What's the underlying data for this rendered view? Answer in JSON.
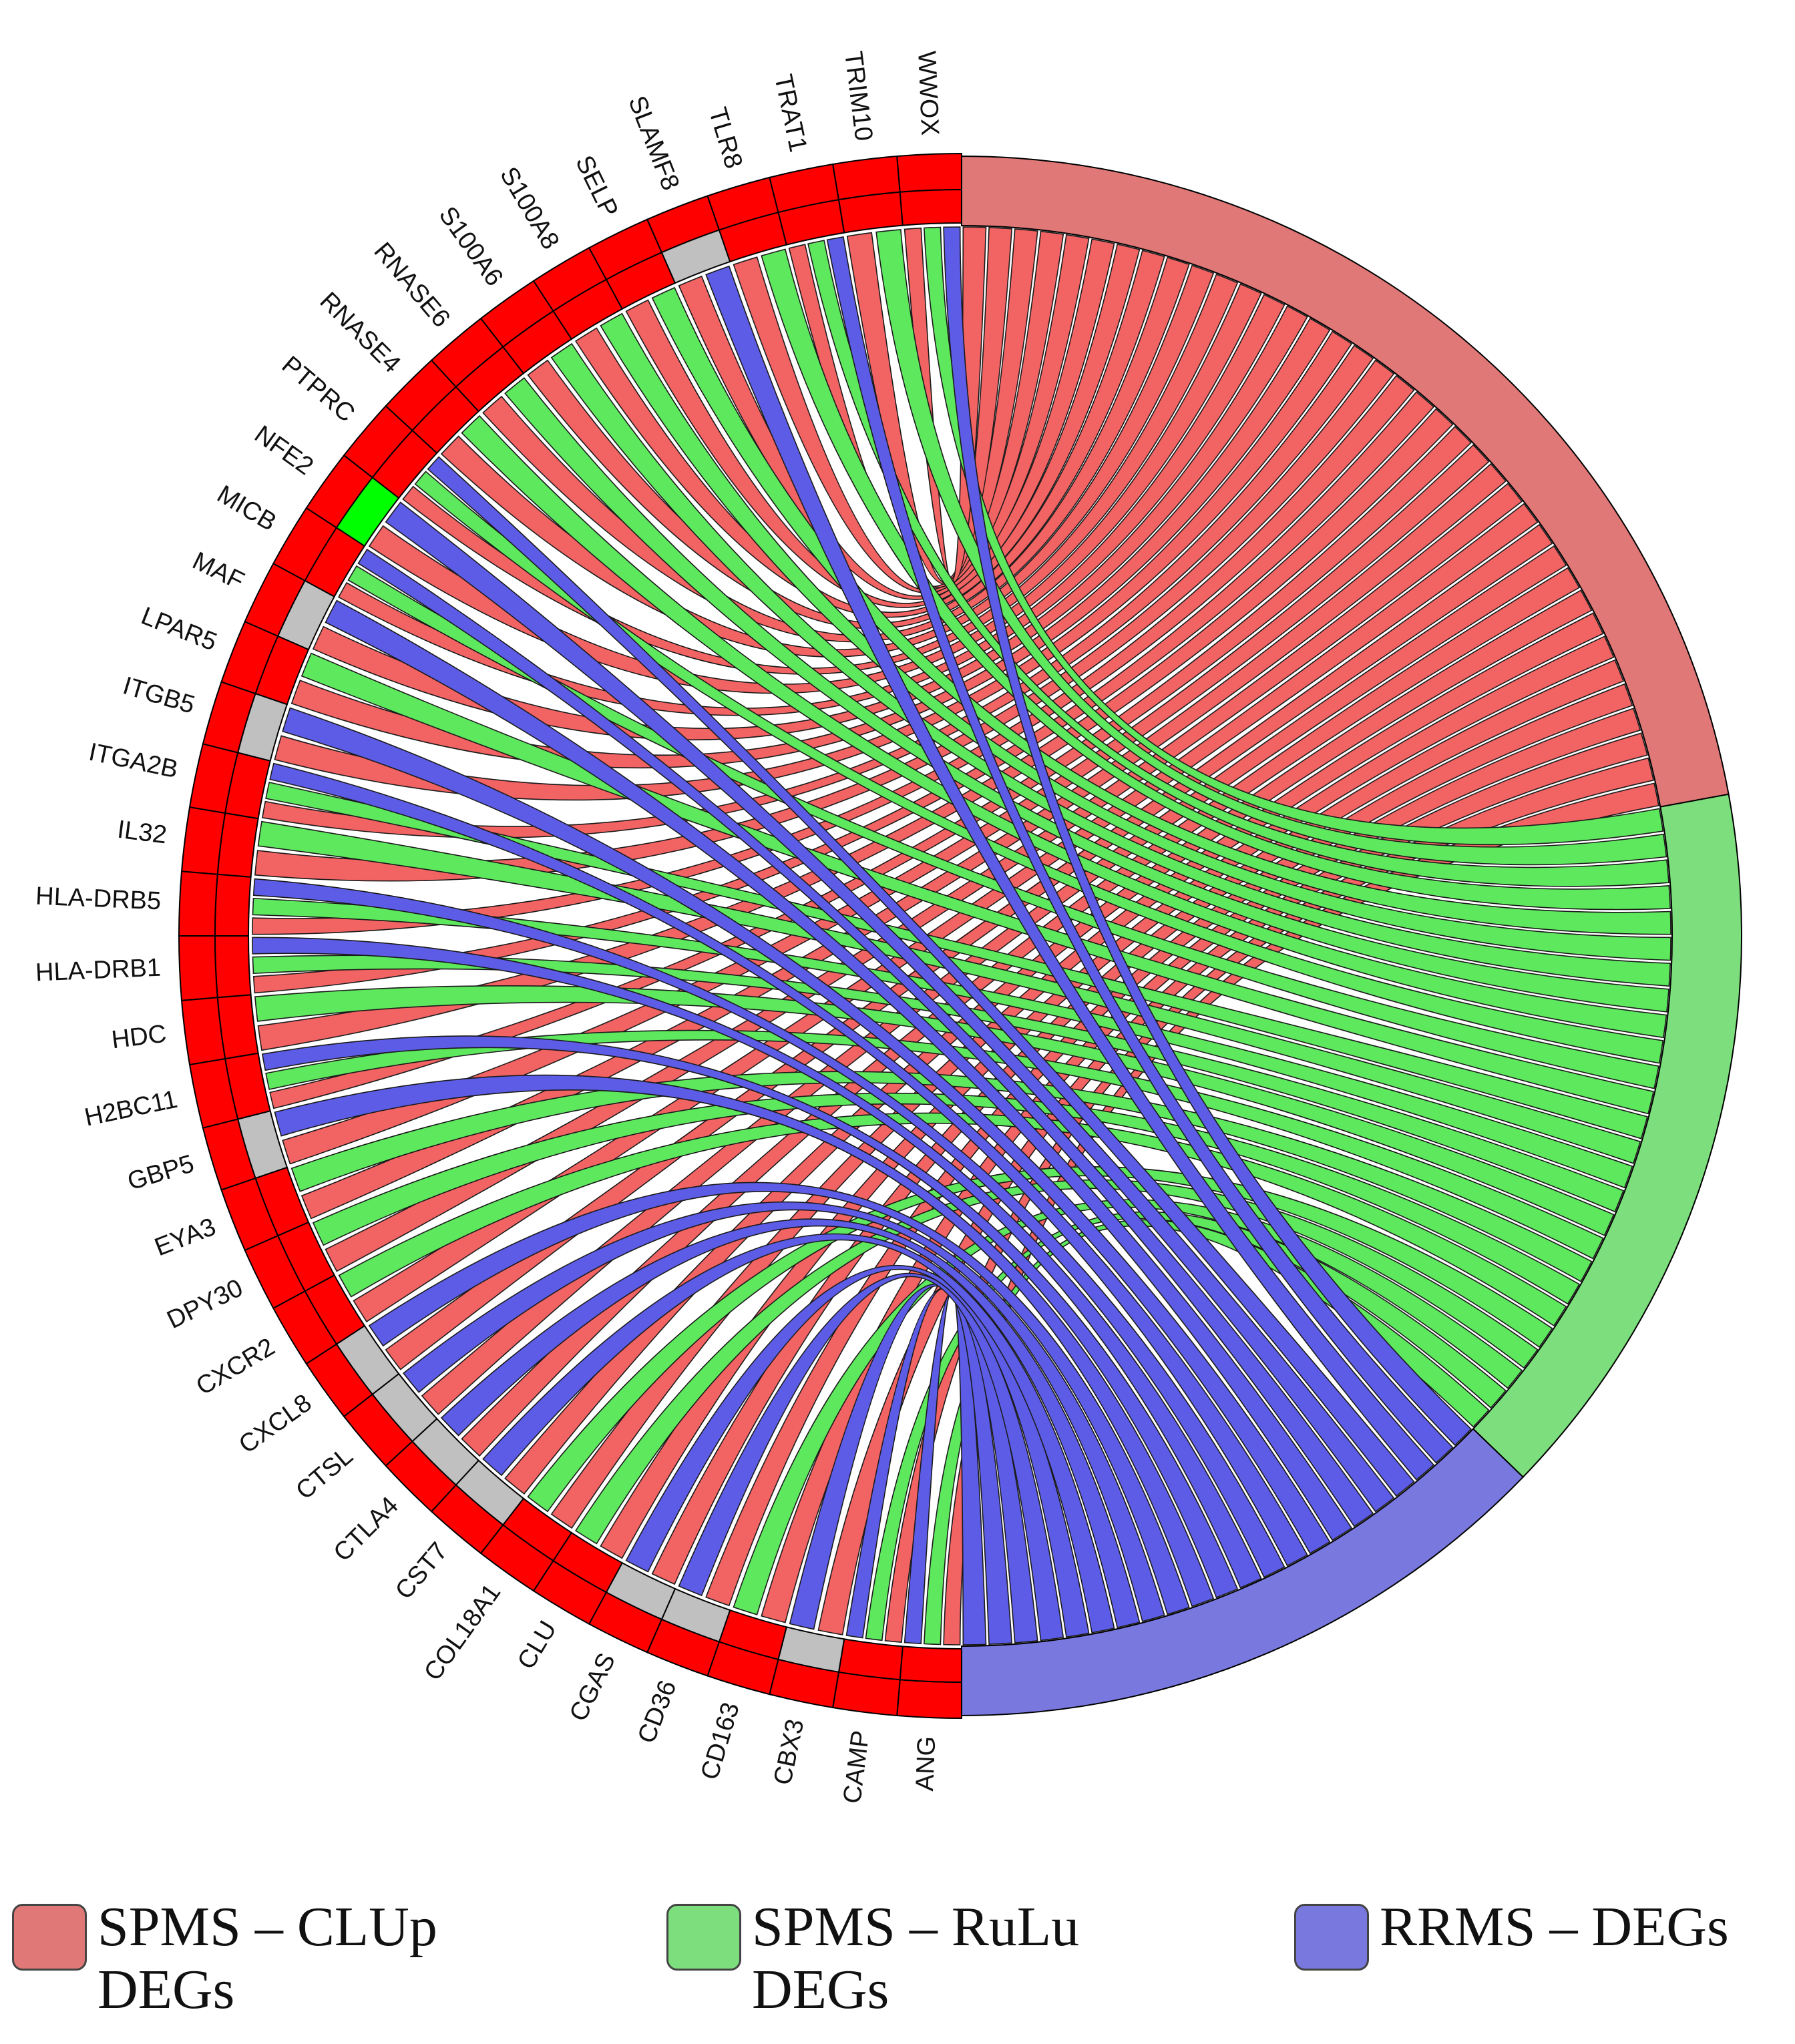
{
  "diagram": {
    "genes": [
      "ANG",
      "CAMP",
      "CBX3",
      "CD163",
      "CD36",
      "CGAS",
      "CLU",
      "COL18A1",
      "CST7",
      "CTLA4",
      "CTSL",
      "CXCL8",
      "CXCR2",
      "DPY30",
      "EYA3",
      "GBP5",
      "H2BC11",
      "HDC",
      "HLA-DRB1",
      "HLA-DRB5",
      "IL32",
      "ITGA2B",
      "ITGB5",
      "LPAR5",
      "MAF",
      "MICB",
      "NFE2",
      "PTPRC",
      "RNASE4",
      "RNASE6",
      "S100A6",
      "S100A8",
      "SELP",
      "SLAMF8",
      "TLR8",
      "TRAT1",
      "TRIM10",
      "WWOX"
    ],
    "membership": [
      [
        1,
        1,
        1
      ],
      [
        1,
        1,
        1
      ],
      [
        1,
        0,
        1
      ],
      [
        1,
        1,
        0
      ],
      [
        1,
        0,
        1
      ],
      [
        1,
        0,
        1
      ],
      [
        1,
        1,
        0
      ],
      [
        1,
        1,
        0
      ],
      [
        1,
        0,
        1
      ],
      [
        1,
        0,
        1
      ],
      [
        1,
        0,
        1
      ],
      [
        1,
        0,
        1
      ],
      [
        1,
        1,
        0
      ],
      [
        1,
        1,
        0
      ],
      [
        1,
        1,
        0
      ],
      [
        1,
        0,
        1
      ],
      [
        1,
        1,
        1
      ],
      [
        1,
        1,
        0
      ],
      [
        1,
        1,
        1
      ],
      [
        1,
        1,
        1
      ],
      [
        1,
        1,
        0
      ],
      [
        1,
        1,
        1
      ],
      [
        1,
        0,
        1
      ],
      [
        1,
        1,
        0
      ],
      [
        1,
        0,
        1
      ],
      [
        1,
        1,
        1
      ],
      [
        1,
        2,
        1
      ],
      [
        1,
        1,
        1
      ],
      [
        1,
        1,
        0
      ],
      [
        1,
        1,
        0
      ],
      [
        1,
        1,
        0
      ],
      [
        1,
        1,
        0
      ],
      [
        1,
        1,
        0
      ],
      [
        1,
        0,
        1
      ],
      [
        1,
        1,
        0
      ],
      [
        1,
        1,
        1
      ],
      [
        1,
        1,
        0
      ],
      [
        1,
        1,
        1
      ]
    ],
    "colors": {
      "group_clup": "#e07878",
      "group_rulu": "#7cde7c",
      "group_rrms": "#7878de",
      "ribbon_clup": "#f26363",
      "ribbon_rulu": "#5ee85e",
      "ribbon_rrms": "#5c5ce6",
      "present": "#ff0000",
      "absent": "#c0c0c0",
      "special": "#00ff00",
      "outline": "#000000"
    }
  },
  "legend": [
    {
      "label": "SPMS – CLUp\nDEGs",
      "color": "#e07878"
    },
    {
      "label": "SPMS – RuLu\nDEGs",
      "color": "#7cde7c"
    },
    {
      "label": "RRMS – DEGs",
      "color": "#7878de"
    }
  ]
}
